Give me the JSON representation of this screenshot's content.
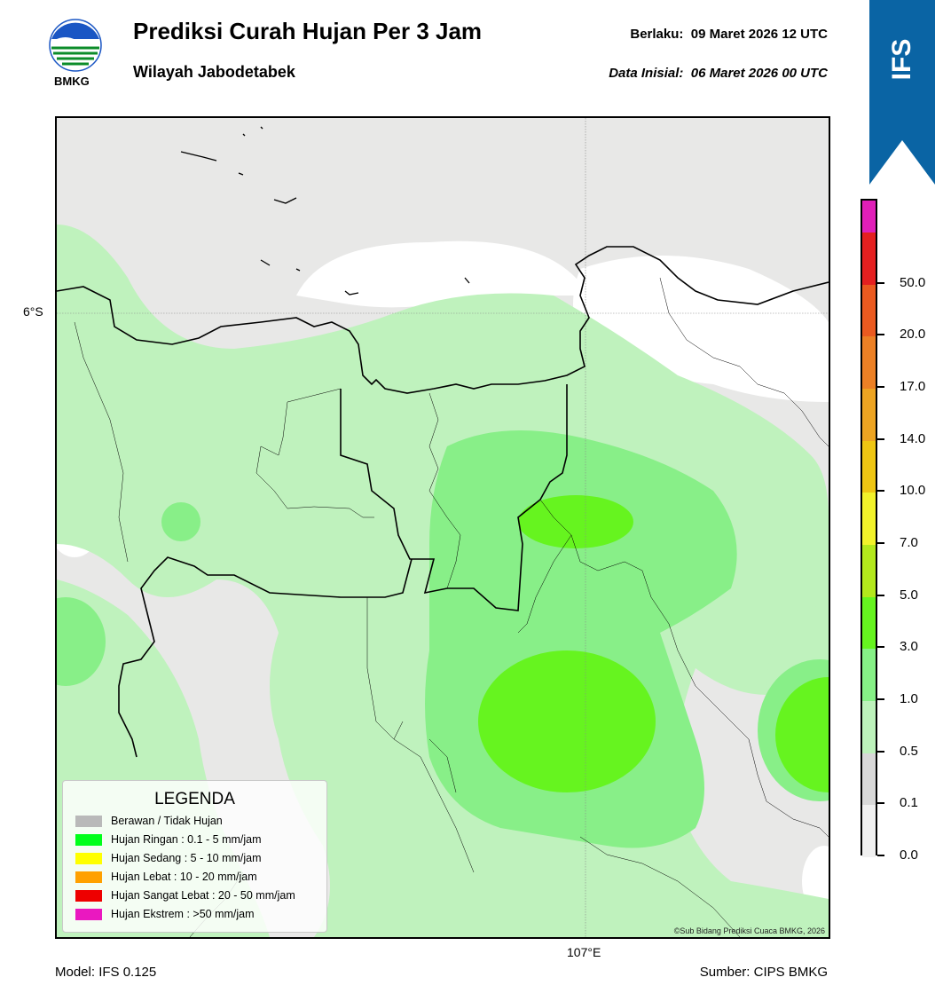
{
  "header": {
    "title": "Prediksi Curah Hujan Per 3 Jam",
    "subtitle": "Wilayah Jabodetabek",
    "valid_label": "Berlaku:",
    "valid_value": "09 Maret 2026 12 UTC",
    "init_label": "Data Inisial:",
    "init_value": "06 Maret 2026 00 UTC",
    "logo_text": "BMKG"
  },
  "map": {
    "lat_label": "6°S",
    "lon_label": "107°E",
    "copyright": "©Sub Bidang Prediksi Cuaca BMKG, 2026"
  },
  "ribbon": {
    "text": "IFS",
    "color": "#0a64a4"
  },
  "colorbar": {
    "levels": [
      {
        "label": "0.0",
        "color": "#f0f0f0"
      },
      {
        "label": "0.1",
        "color": "#d8d8d8"
      },
      {
        "label": "0.5",
        "color": "#bdf2bb"
      },
      {
        "label": "1.0",
        "color": "#86f086"
      },
      {
        "label": "3.0",
        "color": "#66f41f"
      },
      {
        "label": "5.0",
        "color": "#b3e81c"
      },
      {
        "label": "7.0",
        "color": "#f2f22a"
      },
      {
        "label": "10.0",
        "color": "#efc613"
      },
      {
        "label": "14.0",
        "color": "#eda422"
      },
      {
        "label": "17.0",
        "color": "#ec8025"
      },
      {
        "label": "20.0",
        "color": "#ea5a20"
      },
      {
        "label": "50.0",
        "color": "#e42020"
      },
      {
        "label": "",
        "color": "#e01fb8"
      }
    ]
  },
  "legend": {
    "title": "LEGENDA",
    "items": [
      {
        "label": "Berawan / Tidak Hujan",
        "color": "#b9b9b9"
      },
      {
        "label": "Hujan Ringan : 0.1 - 5 mm/jam",
        "color": "#00ff1a"
      },
      {
        "label": "Hujan Sedang : 5 - 10 mm/jam",
        "color": "#ffff00"
      },
      {
        "label": "Hujan Lebat : 10 - 20 mm/jam",
        "color": "#ffa000"
      },
      {
        "label": "Hujan Sangat Lebat : 20 - 50 mm/jam",
        "color": "#ee0000"
      },
      {
        "label": "Hujan Ekstrem : >50 mm/jam",
        "color": "#ea18c0"
      }
    ]
  },
  "footer": {
    "model": "Model: IFS 0.125",
    "source": "Sumber: CIPS BMKG"
  }
}
